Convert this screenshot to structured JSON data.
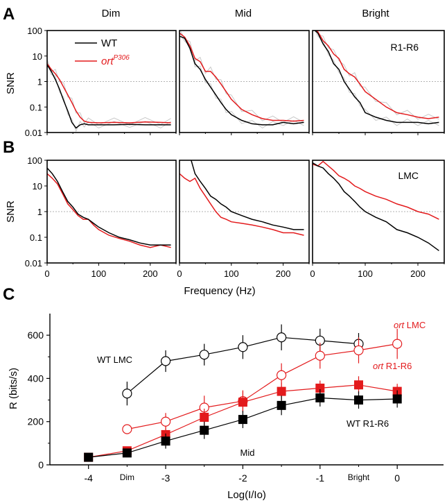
{
  "colors": {
    "wt": "#000000",
    "ort": "#e31a1c",
    "trial": "#c8c8c8",
    "ref_line": "#999999"
  },
  "panels": {
    "A": {
      "letter": "A",
      "label": "R1-R6"
    },
    "B": {
      "letter": "B",
      "label": "LMC"
    },
    "C": {
      "letter": "C"
    }
  },
  "legend": {
    "wt": "WT",
    "ort": "ort",
    "ort_sup": "P306"
  },
  "columns": [
    "Dim",
    "Mid",
    "Bright"
  ],
  "chart_data": [
    {
      "type": "line",
      "panel": "A",
      "ylabel": "SNR",
      "xlabel": "Frequency (Hz)",
      "xlim": [
        0,
        250
      ],
      "ylim": [
        0.01,
        100
      ],
      "yscale": "log",
      "xticks": [
        "0",
        "100",
        "200"
      ],
      "yticks": [
        "0.01",
        "0.1",
        "1",
        "10",
        "100"
      ],
      "reference_line": 1,
      "subplots": [
        {
          "column": "Dim",
          "series": [
            {
              "name": "WT",
              "x": [
                0,
                8,
                16,
                24,
                32,
                40,
                48,
                56,
                64,
                72,
                80,
                100,
                130,
                160,
                190,
                220,
                240
              ],
              "y": [
                4.5,
                2.5,
                1.2,
                0.5,
                0.18,
                0.07,
                0.025,
                0.015,
                0.02,
                0.022,
                0.02,
                0.02,
                0.02,
                0.021,
                0.02,
                0.02,
                0.02
              ]
            },
            {
              "name": "ort",
              "x": [
                0,
                8,
                16,
                24,
                32,
                40,
                48,
                56,
                64,
                72,
                80,
                100,
                130,
                160,
                190,
                220,
                240
              ],
              "y": [
                5,
                3,
                2,
                1.2,
                0.6,
                0.3,
                0.15,
                0.07,
                0.04,
                0.028,
                0.025,
                0.024,
                0.025,
                0.024,
                0.026,
                0.025,
                0.024
              ]
            }
          ]
        },
        {
          "column": "Mid",
          "series": [
            {
              "name": "WT",
              "x": [
                0,
                10,
                20,
                30,
                40,
                50,
                60,
                70,
                80,
                90,
                100,
                120,
                140,
                160,
                180,
                200,
                220,
                240
              ],
              "y": [
                60,
                50,
                20,
                5,
                3,
                1.2,
                0.6,
                0.3,
                0.15,
                0.08,
                0.05,
                0.03,
                0.022,
                0.02,
                0.02,
                0.025,
                0.022,
                0.025
              ]
            },
            {
              "name": "ort",
              "x": [
                0,
                10,
                20,
                30,
                40,
                50,
                60,
                70,
                80,
                90,
                100,
                120,
                140,
                160,
                180,
                200,
                220,
                240
              ],
              "y": [
                80,
                55,
                25,
                8,
                6,
                2.5,
                2.5,
                1.5,
                0.8,
                0.4,
                0.2,
                0.08,
                0.05,
                0.035,
                0.03,
                0.03,
                0.028,
                0.03
              ]
            }
          ]
        },
        {
          "column": "Bright",
          "series": [
            {
              "name": "WT",
              "x": [
                0,
                10,
                20,
                30,
                40,
                50,
                60,
                70,
                80,
                90,
                100,
                120,
                140,
                160,
                180,
                200,
                220,
                240
              ],
              "y": [
                120,
                80,
                30,
                15,
                5,
                3,
                1,
                0.5,
                0.25,
                0.15,
                0.06,
                0.04,
                0.03,
                0.025,
                0.025,
                0.025,
                0.022,
                0.025
              ]
            },
            {
              "name": "ort",
              "x": [
                0,
                10,
                20,
                30,
                40,
                50,
                60,
                70,
                80,
                90,
                100,
                120,
                140,
                160,
                180,
                200,
                220,
                240
              ],
              "y": [
                140,
                90,
                40,
                25,
                12,
                8,
                3,
                2,
                1.5,
                0.8,
                0.4,
                0.2,
                0.1,
                0.06,
                0.05,
                0.04,
                0.035,
                0.04
              ]
            }
          ]
        }
      ]
    },
    {
      "type": "line",
      "panel": "B",
      "ylabel": "SNR",
      "xlabel": "Frequency (Hz)",
      "xlim": [
        0,
        250
      ],
      "ylim": [
        0.01,
        100
      ],
      "yscale": "log",
      "xticks": [
        "0",
        "100",
        "200"
      ],
      "yticks": [
        "0.01",
        "0.1",
        "1",
        "10",
        "100"
      ],
      "reference_line": 1,
      "subplots": [
        {
          "column": "Dim",
          "series": [
            {
              "name": "WT",
              "x": [
                0,
                10,
                20,
                30,
                40,
                50,
                60,
                70,
                80,
                90,
                100,
                120,
                140,
                160,
                180,
                200,
                220,
                240
              ],
              "y": [
                50,
                30,
                15,
                6,
                2.5,
                1.5,
                0.8,
                0.6,
                0.5,
                0.35,
                0.25,
                0.15,
                0.1,
                0.08,
                0.06,
                0.05,
                0.05,
                0.05
              ]
            },
            {
              "name": "ort",
              "x": [
                0,
                10,
                20,
                30,
                40,
                50,
                60,
                70,
                80,
                90,
                100,
                120,
                140,
                160,
                180,
                200,
                220,
                240
              ],
              "y": [
                30,
                20,
                12,
                5,
                2,
                1.2,
                0.7,
                0.5,
                0.5,
                0.3,
                0.2,
                0.12,
                0.09,
                0.07,
                0.05,
                0.04,
                0.05,
                0.04
              ]
            }
          ]
        },
        {
          "column": "Mid",
          "series": [
            {
              "name": "WT",
              "x": [
                0,
                10,
                20,
                30,
                40,
                50,
                60,
                70,
                80,
                90,
                100,
                120,
                140,
                160,
                180,
                200,
                220,
                240
              ],
              "y": [
                100,
                120,
                150,
                30,
                15,
                8,
                4,
                3,
                2,
                1.5,
                1,
                0.7,
                0.5,
                0.4,
                0.3,
                0.25,
                0.2,
                0.2
              ]
            },
            {
              "name": "ort",
              "x": [
                0,
                10,
                20,
                30,
                40,
                50,
                60,
                70,
                80,
                90,
                100,
                120,
                140,
                160,
                180,
                200,
                220,
                240
              ],
              "y": [
                30,
                20,
                15,
                20,
                8,
                4,
                2,
                1,
                0.6,
                0.5,
                0.4,
                0.35,
                0.3,
                0.25,
                0.2,
                0.15,
                0.15,
                0.12
              ]
            }
          ]
        },
        {
          "column": "Bright",
          "series": [
            {
              "name": "WT",
              "x": [
                0,
                10,
                20,
                30,
                40,
                50,
                60,
                70,
                80,
                90,
                100,
                120,
                140,
                160,
                180,
                200,
                220,
                240
              ],
              "y": [
                80,
                60,
                50,
                30,
                20,
                12,
                6,
                4,
                2.5,
                1.5,
                1,
                0.6,
                0.4,
                0.2,
                0.15,
                0.1,
                0.06,
                0.03
              ]
            },
            {
              "name": "ort",
              "x": [
                0,
                10,
                20,
                30,
                40,
                50,
                60,
                70,
                80,
                90,
                100,
                120,
                140,
                160,
                180,
                200,
                220,
                240
              ],
              "y": [
                70,
                60,
                90,
                60,
                40,
                25,
                20,
                15,
                10,
                8,
                6,
                4,
                3,
                2,
                1.5,
                1,
                0.8,
                0.5
              ]
            }
          ]
        }
      ]
    },
    {
      "type": "line",
      "panel": "C",
      "ylabel": "R (bits/s)",
      "xlabel": "Log(I/Io)",
      "xlim": [
        -4.5,
        0.6
      ],
      "ylim": [
        0,
        700
      ],
      "xticks": [
        "-4",
        "-3",
        "-2",
        "-1",
        "0"
      ],
      "yticks": [
        "0",
        "200",
        "400",
        "600"
      ],
      "xtick_labels_extra": [
        {
          "text": "Dim",
          "x": -3.5
        },
        {
          "text": "Bright",
          "x": -0.5
        }
      ],
      "inner_label": {
        "text": "Mid",
        "x": -2.0,
        "y": 50
      },
      "series": [
        {
          "name": "WT LMC",
          "marker": "open-circle",
          "color": "wt",
          "x": [
            -3.5,
            -3.0,
            -2.5,
            -2.0,
            -1.5,
            -1.0,
            -0.5
          ],
          "y": [
            330,
            480,
            510,
            545,
            590,
            575,
            560
          ],
          "err": [
            55,
            50,
            50,
            55,
            60,
            55,
            50
          ]
        },
        {
          "name": "ort LMC",
          "marker": "open-circle",
          "color": "ort",
          "x": [
            -3.5,
            -3.0,
            -2.5,
            -2.0,
            -1.5,
            -1.0,
            -0.5,
            0.0
          ],
          "y": [
            165,
            200,
            265,
            295,
            415,
            505,
            530,
            560
          ],
          "err": [
            20,
            40,
            55,
            50,
            55,
            60,
            60,
            70
          ]
        },
        {
          "name": "ort R1-R6",
          "marker": "filled-square",
          "color": "ort",
          "x": [
            -4.0,
            -3.5,
            -3.0,
            -2.5,
            -2.0,
            -1.5,
            -1.0,
            -0.5,
            0.0
          ],
          "y": [
            35,
            65,
            140,
            220,
            290,
            340,
            355,
            370,
            340
          ],
          "err": [
            15,
            20,
            35,
            40,
            50,
            40,
            35,
            40,
            35
          ]
        },
        {
          "name": "WT R1-R6",
          "marker": "filled-square",
          "color": "wt",
          "x": [
            -4.0,
            -3.5,
            -3.0,
            -2.5,
            -2.0,
            -1.5,
            -1.0,
            -0.5,
            0.0
          ],
          "y": [
            35,
            55,
            110,
            160,
            210,
            275,
            310,
            300,
            305
          ],
          "err": [
            15,
            20,
            35,
            40,
            40,
            45,
            40,
            40,
            40
          ]
        }
      ],
      "series_labels": [
        {
          "text": "WT LMC",
          "color": "wt"
        },
        {
          "text_italic": "ort",
          "text": " LMC",
          "color": "ort"
        },
        {
          "text_italic": "ort",
          "text": " R1-R6",
          "color": "ort"
        },
        {
          "text": "WT R1-R6",
          "color": "wt"
        }
      ]
    }
  ]
}
